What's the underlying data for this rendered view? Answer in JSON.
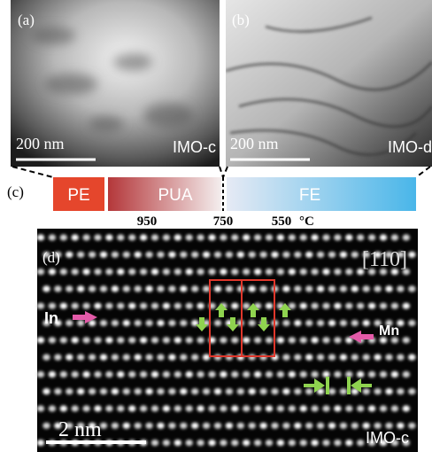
{
  "panel_a": {
    "label": "(a)",
    "scale": "200 nm",
    "sample": "IMO-c"
  },
  "panel_b": {
    "label": "(b)",
    "scale": "200 nm",
    "sample": "IMO-d"
  },
  "panel_c": {
    "label": "(c)",
    "phases": [
      "PE",
      "PUA",
      "FE"
    ],
    "temperatures": [
      "950",
      "750",
      "550"
    ],
    "unit": "°C"
  },
  "panel_d": {
    "label": "(d)",
    "direction": "[110]",
    "atoms": [
      "In",
      "Mn"
    ],
    "scale": "2 nm",
    "sample": "IMO-c"
  }
}
